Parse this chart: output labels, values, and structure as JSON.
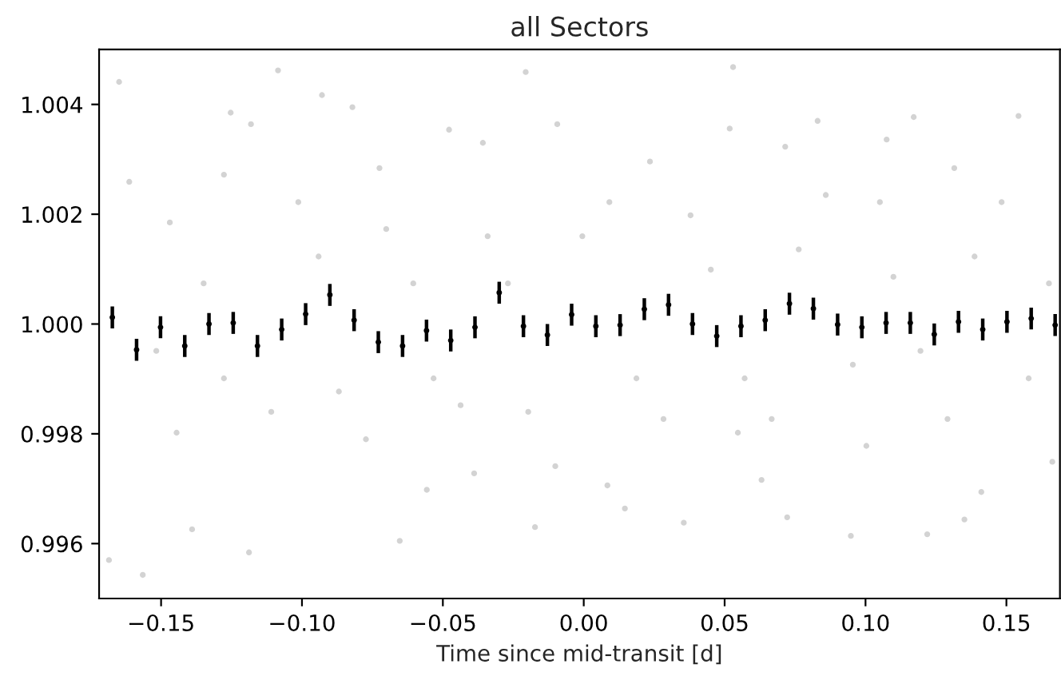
{
  "chart_data": {
    "type": "scatter",
    "title": "all Sectors",
    "xlabel": "Time since mid-transit [d]",
    "xlim": [
      -0.172,
      0.169
    ],
    "ylim": [
      0.995,
      1.005
    ],
    "xticks": [
      {
        "value": -0.15,
        "label": "−0.15"
      },
      {
        "value": -0.1,
        "label": "−0.10"
      },
      {
        "value": -0.05,
        "label": "−0.05"
      },
      {
        "value": 0,
        "label": "0.00"
      },
      {
        "value": 0.05,
        "label": "0.05"
      },
      {
        "value": 0.1,
        "label": "0.10"
      },
      {
        "value": 0.15,
        "label": "0.15"
      }
    ],
    "yticks": [
      {
        "value": 0.996,
        "label": "0.996"
      },
      {
        "value": 0.998,
        "label": "0.998"
      },
      {
        "value": 1.0,
        "label": "1.000"
      },
      {
        "value": 1.002,
        "label": "1.002"
      },
      {
        "value": 1.004,
        "label": "1.004"
      }
    ],
    "series": [
      {
        "color": "#d3d3d3",
        "marker": "circle",
        "x": [
          -0.1649,
          -0.1685,
          -0.1565,
          -0.1085,
          -0.1181,
          -0.1253,
          -0.1188,
          -0.139,
          -0.0929,
          -0.0821,
          -0.0653,
          -0.0557,
          -0.0478,
          -0.0358,
          -0.0206,
          -0.0173,
          -0.0094,
          0.0146,
          0.0084,
          0.0355,
          0.053,
          0.0518,
          0.0631,
          0.0722,
          0.0715,
          0.0948,
          0.1219,
          0.1351,
          0.1543,
          0.1411,
          0.1663,
          0.1171,
          0.1075,
          0.083,
          -0.1613,
          -0.1469,
          -0.1349,
          -0.1277,
          -0.1445,
          -0.1109,
          -0.1013,
          -0.0941,
          -0.0869,
          -0.0773,
          -0.0701,
          -0.0605,
          -0.0533,
          -0.0437,
          -0.0341,
          -0.0269,
          -0.0197,
          -0.0101,
          -0.0005,
          0.0091,
          0.0187,
          0.0283,
          0.0379,
          0.0451,
          0.0571,
          0.0667,
          0.0763,
          0.0859,
          0.0955,
          0.1003,
          0.1099,
          0.1195,
          0.1291,
          0.1387,
          0.1483,
          0.1579,
          0.1651,
          -0.1517,
          -0.1277,
          -0.0725,
          -0.0389,
          0.0235,
          0.0547,
          0.1051,
          0.1315
        ],
        "values": [
          1.00441,
          0.9957,
          0.99543,
          1.00462,
          1.00364,
          1.00385,
          0.99584,
          0.99626,
          1.00417,
          1.00395,
          0.99605,
          0.99698,
          1.00354,
          1.0033,
          1.00459,
          0.9963,
          1.00364,
          0.99664,
          0.99706,
          0.99638,
          1.00468,
          1.00356,
          0.99716,
          0.99648,
          1.00323,
          0.99614,
          0.99617,
          0.99644,
          1.00379,
          0.99694,
          0.99749,
          1.00377,
          1.00336,
          1.0037,
          1.00259,
          1.00185,
          1.00074,
          0.99901,
          0.99802,
          0.9984,
          1.00222,
          1.00123,
          0.99877,
          0.9979,
          1.00173,
          1.00074,
          0.99901,
          0.99852,
          1.0016,
          1.00074,
          0.9984,
          0.99741,
          1.0016,
          1.00222,
          0.99901,
          0.99827,
          1.00198,
          1.00099,
          0.99901,
          0.99827,
          1.00136,
          1.00235,
          0.99926,
          0.99778,
          1.00086,
          0.99951,
          0.99827,
          1.00123,
          1.00222,
          0.99901,
          1.00074,
          0.99951,
          1.00272,
          1.00284,
          0.99728,
          1.00296,
          0.99802,
          1.00222,
          1.00284
        ]
      },
      {
        "color": "#000000",
        "marker": "circle",
        "x": [
          -0.1673,
          -0.1587,
          -0.1502,
          -0.1416,
          -0.133,
          -0.1244,
          -0.1158,
          -0.1072,
          -0.0987,
          -0.0901,
          -0.0815,
          -0.0729,
          -0.0643,
          -0.0558,
          -0.0472,
          -0.0386,
          -0.03,
          -0.0214,
          -0.0129,
          -0.0043,
          0.0043,
          0.0129,
          0.0215,
          0.0301,
          0.0386,
          0.0472,
          0.0558,
          0.0644,
          0.073,
          0.0815,
          0.0901,
          0.0987,
          0.1073,
          0.1159,
          0.1244,
          0.133,
          0.1416,
          0.1502,
          0.1588,
          0.1673
        ],
        "values": [
          1.00012,
          0.99953,
          0.99994,
          0.9996,
          1.0,
          1.00002,
          0.9996,
          0.9999,
          1.00018,
          1.00053,
          1.00007,
          0.99967,
          0.9996,
          0.99988,
          0.9997,
          0.99994,
          1.00057,
          0.99996,
          0.9998,
          1.00017,
          0.99996,
          0.99998,
          1.00027,
          1.00035,
          1.0,
          0.99978,
          0.99996,
          1.00007,
          1.00037,
          1.00028,
          0.99999,
          0.99994,
          1.00002,
          1.00002,
          0.99981,
          1.00004,
          0.9999,
          1.00004,
          1.0001,
          0.99998
        ],
        "errors": [
          0.0002,
          0.0002,
          0.0002,
          0.0002,
          0.0002,
          0.0002,
          0.0002,
          0.0002,
          0.0002,
          0.0002,
          0.0002,
          0.0002,
          0.0002,
          0.0002,
          0.0002,
          0.0002,
          0.0002,
          0.0002,
          0.0002,
          0.0002,
          0.0002,
          0.0002,
          0.0002,
          0.0002,
          0.0002,
          0.0002,
          0.0002,
          0.0002,
          0.0002,
          0.0002,
          0.0002,
          0.0002,
          0.0002,
          0.0002,
          0.0002,
          0.0002,
          0.0002,
          0.0002,
          0.0002,
          0.0002
        ]
      }
    ]
  }
}
